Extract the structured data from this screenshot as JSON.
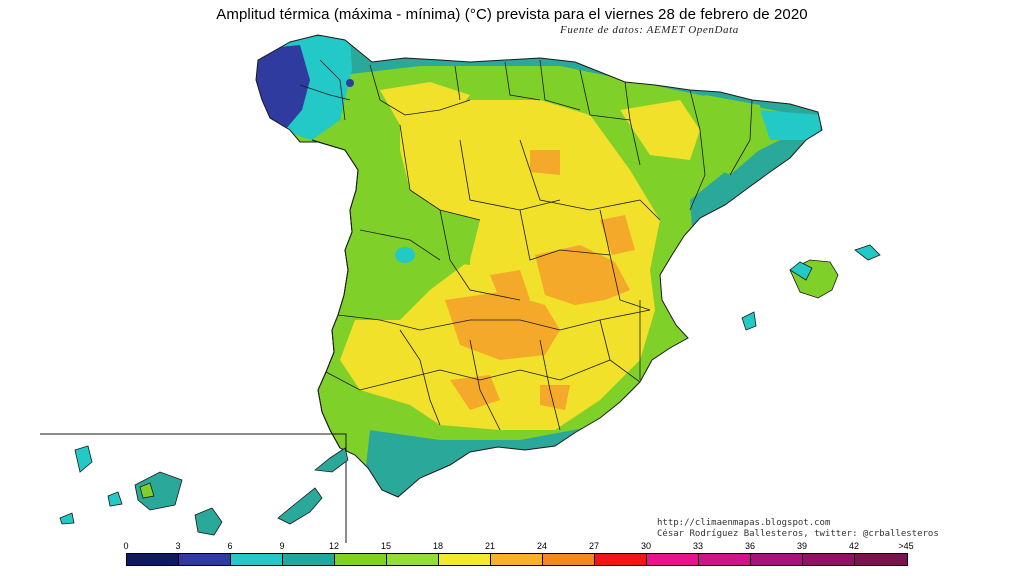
{
  "title": "Amplitud térmica (máxima - mínima) (°C) prevista para el viernes 28 de febrero de 2020",
  "source": "Fuente de datos: AEMET OpenData",
  "credit": {
    "blog": "http://climaenmapas.blogspot.com",
    "author": "César Rodríguez Ballesteros, twitter: @crballesteros"
  },
  "legend": {
    "ticks": [
      "0",
      "3",
      "6",
      "9",
      "12",
      "15",
      "18",
      "21",
      "24",
      "27",
      "30",
      "33",
      "36",
      "39",
      "42",
      ">45"
    ],
    "colors": [
      "#0d1a5e",
      "#2f3b9e",
      "#22c9c6",
      "#20a8a0",
      "#7ed420",
      "#93dd36",
      "#f2ea2b",
      "#f5b12a",
      "#f08a1c",
      "#f01616",
      "#e8128c",
      "#cf148b",
      "#a8127e",
      "#8f1266",
      "#7a1450"
    ]
  },
  "map_colors": {
    "land": "#80d02a",
    "sea": "#ffffff",
    "border": "#1a1a1a",
    "galicia_blue": "#2f3b9e",
    "teal": "#22c9c6",
    "teal_dark": "#2aa89a",
    "yellow": "#f2e12a",
    "orange": "#f5a92a"
  }
}
